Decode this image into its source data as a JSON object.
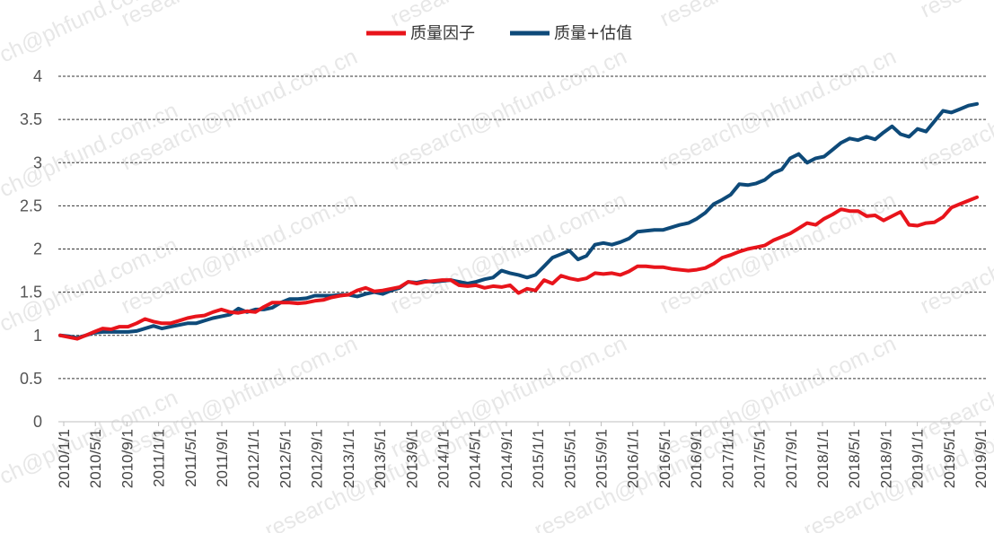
{
  "chart_data": {
    "type": "line",
    "title": "",
    "xlabel": "",
    "ylabel": "",
    "ylim": [
      0,
      4
    ],
    "yticks": [
      "0",
      "0.5",
      "1",
      "1.5",
      "2",
      "2.5",
      "3",
      "3.5",
      "4"
    ],
    "grid": "horizontal dashed",
    "legend_position": "top-center",
    "xtick_labels": [
      "2010/1/1",
      "2010/5/1",
      "2010/9/1",
      "2011/1/1",
      "2011/5/1",
      "2011/9/1",
      "2012/1/1",
      "2012/5/1",
      "2012/9/1",
      "2013/1/1",
      "2013/5/1",
      "2013/9/1",
      "2014/1/1",
      "2014/5/1",
      "2014/9/1",
      "2015/1/1",
      "2015/5/1",
      "2015/9/1",
      "2016/1/1",
      "2016/5/1",
      "2016/9/1",
      "2017/1/1",
      "2017/5/1",
      "2017/9/1",
      "2018/1/1",
      "2018/5/1",
      "2018/9/1",
      "2019/1/1",
      "2019/5/1",
      "2019/9/1"
    ],
    "series": [
      {
        "name": "质量因子",
        "color": "#e8141b",
        "values": [
          1.0,
          0.98,
          0.96,
          1.0,
          1.04,
          1.08,
          1.07,
          1.1,
          1.1,
          1.14,
          1.19,
          1.16,
          1.14,
          1.14,
          1.17,
          1.2,
          1.22,
          1.23,
          1.27,
          1.3,
          1.27,
          1.26,
          1.28,
          1.27,
          1.33,
          1.38,
          1.38,
          1.38,
          1.37,
          1.38,
          1.4,
          1.41,
          1.44,
          1.46,
          1.47,
          1.52,
          1.55,
          1.51,
          1.52,
          1.54,
          1.56,
          1.62,
          1.6,
          1.62,
          1.63,
          1.64,
          1.64,
          1.58,
          1.57,
          1.58,
          1.55,
          1.57,
          1.56,
          1.58,
          1.49,
          1.54,
          1.52,
          1.64,
          1.6,
          1.69,
          1.66,
          1.64,
          1.66,
          1.72,
          1.71,
          1.72,
          1.7,
          1.74,
          1.8,
          1.8,
          1.79,
          1.79,
          1.77,
          1.76,
          1.75,
          1.76,
          1.78,
          1.83,
          1.9,
          1.93,
          1.97,
          2.0,
          2.02,
          2.04,
          2.1,
          2.14,
          2.18,
          2.24,
          2.3,
          2.28,
          2.35,
          2.4,
          2.46,
          2.44,
          2.44,
          2.38,
          2.39,
          2.33,
          2.38,
          2.43,
          2.28,
          2.27,
          2.3,
          2.31,
          2.37,
          2.48,
          2.52,
          2.56,
          2.6
        ]
      },
      {
        "name": "质量+估值",
        "color": "#0e4a79",
        "values": [
          1.0,
          0.99,
          0.97,
          1.0,
          1.03,
          1.04,
          1.04,
          1.04,
          1.04,
          1.05,
          1.08,
          1.11,
          1.08,
          1.1,
          1.12,
          1.14,
          1.14,
          1.17,
          1.2,
          1.22,
          1.24,
          1.31,
          1.27,
          1.3,
          1.3,
          1.32,
          1.38,
          1.42,
          1.42,
          1.43,
          1.46,
          1.46,
          1.46,
          1.47,
          1.47,
          1.45,
          1.48,
          1.5,
          1.48,
          1.52,
          1.55,
          1.62,
          1.61,
          1.63,
          1.62,
          1.63,
          1.64,
          1.62,
          1.6,
          1.62,
          1.65,
          1.67,
          1.75,
          1.72,
          1.7,
          1.67,
          1.7,
          1.8,
          1.9,
          1.94,
          1.98,
          1.88,
          1.92,
          2.05,
          2.07,
          2.05,
          2.08,
          2.12,
          2.2,
          2.21,
          2.22,
          2.22,
          2.25,
          2.28,
          2.3,
          2.35,
          2.42,
          2.52,
          2.57,
          2.63,
          2.75,
          2.74,
          2.76,
          2.8,
          2.88,
          2.92,
          3.05,
          3.1,
          3.0,
          3.05,
          3.07,
          3.15,
          3.23,
          3.28,
          3.26,
          3.3,
          3.27,
          3.35,
          3.42,
          3.33,
          3.3,
          3.39,
          3.36,
          3.48,
          3.6,
          3.58,
          3.62,
          3.66,
          3.68
        ]
      }
    ]
  },
  "watermark": "research@phfund.com.cn"
}
